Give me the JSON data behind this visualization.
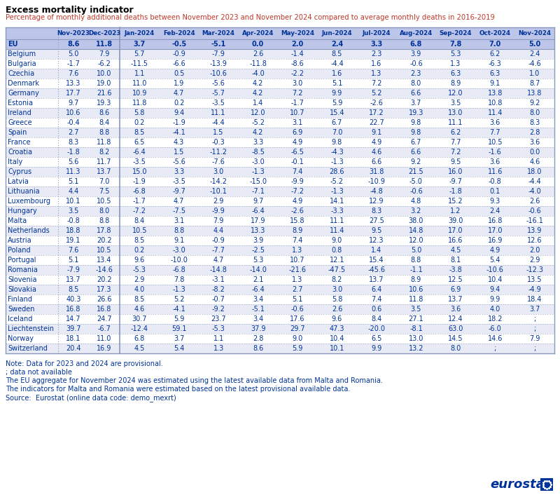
{
  "title": "Excess mortality indicator",
  "subtitle": "Percentage of monthly additional deaths between November 2023 and November 2024 compared to average monthly deaths in 2016-2019",
  "columns": [
    "",
    "Nov-2023",
    "Dec-2023",
    "Jan-2024",
    "Feb-2024",
    "Mar-2024",
    "Apr-2024",
    "May-2024",
    "Jun-2024",
    "Jul-2024",
    "Aug-2024",
    "Sep-2024",
    "Oct-2024",
    "Nov-2024"
  ],
  "rows": [
    [
      "EU",
      "8.6",
      "11.8",
      "3.7",
      "-0.5",
      "-5.1",
      "0.0",
      "2.0",
      "2.4",
      "3.3",
      "6.8",
      "7.8",
      "7.0",
      "5.0"
    ],
    [
      "Belgium",
      "5.0",
      "7.9",
      "5.7",
      "-0.9",
      "-7.9",
      "2.6",
      "-1.4",
      "8.5",
      "2.3",
      "3.9",
      "5.3",
      "6.2",
      "2.4"
    ],
    [
      "Bulgaria",
      "-1.7",
      "-6.2",
      "-11.5",
      "-6.6",
      "-13.9",
      "-11.8",
      "-8.6",
      "-4.4",
      "1.6",
      "-0.6",
      "1.3",
      "-6.3",
      "-4.6"
    ],
    [
      "Czechia",
      "7.6",
      "10.0",
      "1.1",
      "0.5",
      "-10.6",
      "-4.0",
      "-2.2",
      "1.6",
      "1.3",
      "2.3",
      "6.3",
      "6.3",
      "1.0"
    ],
    [
      "Denmark",
      "13.3",
      "19.0",
      "11.0",
      "1.9",
      "-5.6",
      "4.2",
      "3.0",
      "5.1",
      "7.2",
      "8.0",
      "8.9",
      "9.1",
      "8.7"
    ],
    [
      "Germany",
      "17.7",
      "21.6",
      "10.9",
      "4.7",
      "-5.7",
      "4.2",
      "7.2",
      "9.9",
      "5.2",
      "6.6",
      "12.0",
      "13.8",
      "13.8"
    ],
    [
      "Estonia",
      "9.7",
      "19.3",
      "11.8",
      "0.2",
      "-3.5",
      "1.4",
      "-1.7",
      "5.9",
      "-2.6",
      "3.7",
      "3.5",
      "10.8",
      "9.2"
    ],
    [
      "Ireland",
      "10.6",
      "8.6",
      "5.8",
      "9.4",
      "11.1",
      "12.0",
      "10.7",
      "15.4",
      "17.2",
      "19.3",
      "13.0",
      "11.4",
      "8.0"
    ],
    [
      "Greece",
      "-0.4",
      "8.4",
      "0.2",
      "-1.9",
      "-4.4",
      "-5.2",
      "3.1",
      "6.7",
      "22.7",
      "9.8",
      "11.1",
      "3.6",
      "8.3"
    ],
    [
      "Spain",
      "2.7",
      "8.8",
      "8.5",
      "-4.1",
      "1.5",
      "4.2",
      "6.9",
      "7.0",
      "9.1",
      "9.8",
      "6.2",
      "7.7",
      "2.8"
    ],
    [
      "France",
      "8.3",
      "11.8",
      "6.5",
      "4.3",
      "-0.3",
      "3.3",
      "4.9",
      "9.8",
      "4.9",
      "6.7",
      "7.7",
      "10.5",
      "3.6"
    ],
    [
      "Croatia",
      "-1.8",
      "8.2",
      "-6.4",
      "1.5",
      "-11.2",
      "-8.5",
      "-6.5",
      "-4.3",
      "4.6",
      "6.6",
      "7.2",
      "-1.6",
      "0.0"
    ],
    [
      "Italy",
      "5.6",
      "11.7",
      "-3.5",
      "-5.6",
      "-7.6",
      "-3.0",
      "-0.1",
      "-1.3",
      "6.6",
      "9.2",
      "9.5",
      "3.6",
      "4.6"
    ],
    [
      "Cyprus",
      "11.3",
      "13.7",
      "15.0",
      "3.3",
      "3.0",
      "-1.3",
      "7.4",
      "28.6",
      "31.8",
      "21.5",
      "16.0",
      "11.6",
      "18.0"
    ],
    [
      "Latvia",
      "5.1",
      "7.0",
      "-1.9",
      "-3.5",
      "-14.2",
      "-15.0",
      "-9.9",
      "-5.2",
      "-10.9",
      "-5.0",
      "-9.7",
      "-0.8",
      "-4.4"
    ],
    [
      "Lithuania",
      "4.4",
      "7.5",
      "-6.8",
      "-9.7",
      "-10.1",
      "-7.1",
      "-7.2",
      "-1.3",
      "-4.8",
      "-0.6",
      "-1.8",
      "0.1",
      "-4.0"
    ],
    [
      "Luxembourg",
      "10.1",
      "10.5",
      "-1.7",
      "4.7",
      "2.9",
      "9.7",
      "4.9",
      "14.1",
      "12.9",
      "4.8",
      "15.2",
      "9.3",
      "2.6"
    ],
    [
      "Hungary",
      "3.5",
      "8.0",
      "-7.2",
      "-7.5",
      "-9.9",
      "-6.4",
      "-2.6",
      "-3.3",
      "8.3",
      "3.2",
      "1.2",
      "2.4",
      "-0.6"
    ],
    [
      "Malta",
      "-0.8",
      "8.8",
      "8.4",
      "3.1",
      "7.9",
      "17.9",
      "15.8",
      "11.1",
      "27.5",
      "38.0",
      "39.0",
      "16.8",
      "-16.1"
    ],
    [
      "Netherlands",
      "18.8",
      "17.8",
      "10.5",
      "8.8",
      "4.4",
      "13.3",
      "8.9",
      "11.4",
      "9.5",
      "14.8",
      "17.0",
      "17.0",
      "13.9"
    ],
    [
      "Austria",
      "19.1",
      "20.2",
      "8.5",
      "9.1",
      "-0.9",
      "3.9",
      "7.4",
      "9.0",
      "12.3",
      "12.0",
      "16.6",
      "16.9",
      "12.6"
    ],
    [
      "Poland",
      "7.6",
      "10.5",
      "0.2",
      "-3.0",
      "-7.7",
      "-2.5",
      "1.3",
      "0.8",
      "1.4",
      "5.0",
      "4.5",
      "4.9",
      "2.0"
    ],
    [
      "Portugal",
      "5.1",
      "13.4",
      "9.6",
      "-10.0",
      "4.7",
      "5.3",
      "10.7",
      "12.1",
      "15.4",
      "8.8",
      "8.1",
      "5.4",
      "2.9"
    ],
    [
      "Romania",
      "-7.9",
      "-14.6",
      "-5.3",
      "-6.8",
      "-14.8",
      "-14.0",
      "-21.6",
      "-47.5",
      "-45.6",
      "-1.1",
      "-3.8",
      "-10.6",
      "-12.3"
    ],
    [
      "Slovenia",
      "13.7",
      "20.2",
      "2.9",
      "7.8",
      "-3.1",
      "2.1",
      "1.3",
      "8.2",
      "13.7",
      "8.9",
      "12.5",
      "10.4",
      "13.5"
    ],
    [
      "Slovakia",
      "8.5",
      "17.3",
      "4.0",
      "-1.3",
      "-8.2",
      "-6.4",
      "2.7",
      "3.0",
      "6.4",
      "10.6",
      "6.9",
      "9.4",
      "-4.9"
    ],
    [
      "Finland",
      "40.3",
      "26.6",
      "8.5",
      "5.2",
      "-0.7",
      "3.4",
      "5.1",
      "5.8",
      "7.4",
      "11.8",
      "13.7",
      "9.9",
      "18.4"
    ],
    [
      "Sweden",
      "16.8",
      "16.8",
      "4.6",
      "-4.1",
      "-9.2",
      "-5.1",
      "-0.6",
      "2.6",
      "0.6",
      "3.5",
      "3.6",
      "4.0",
      "3.7"
    ],
    [
      "Iceland",
      "14.7",
      "24.7",
      "30.7",
      "5.9",
      "23.7",
      "3.4",
      "17.6",
      "9.6",
      "8.4",
      "27.1",
      "12.4",
      "18.2",
      ";"
    ],
    [
      "Liechtenstein",
      "39.7",
      "-6.7",
      "-12.4",
      "59.1",
      "-5.3",
      "37.9",
      "29.7",
      "47.3",
      "-20.0",
      "-8.1",
      "63.0",
      "-6.0",
      ";"
    ],
    [
      "Norway",
      "18.1",
      "11.0",
      "6.8",
      "3.7",
      "1.1",
      "2.8",
      "9.0",
      "10.4",
      "6.5",
      "13.0",
      "14.5",
      "14.6",
      "7.9"
    ],
    [
      "Switzerland",
      "20.4",
      "16.9",
      "4.5",
      "5.4",
      "1.3",
      "8.6",
      "5.9",
      "10.1",
      "9.9",
      "13.2",
      "8.0",
      ";",
      ";"
    ]
  ],
  "notes": [
    "Note: Data for 2023 and 2024 are provisional.",
    "; data not available",
    "The EU aggregate for November 2024 was estimated using the latest available data from Malta and Romania.",
    "The indicators for Malta and Romania were estimated based on the latest provisional available data.",
    "Source:  Eurostat (online data code: demo_mexrt)"
  ],
  "header_bg": "#bdc5e8",
  "eu_row_bg": "#bdc5e8",
  "alt_row_bg": "#ffffff",
  "alt_row_bg2": "#e8ebf5",
  "title_color": "#000000",
  "subtitle_color": "#c0392b",
  "text_color": "#003399",
  "note_color": "#003399",
  "border_color": "#8899bb",
  "separator_color": "#8899bb"
}
